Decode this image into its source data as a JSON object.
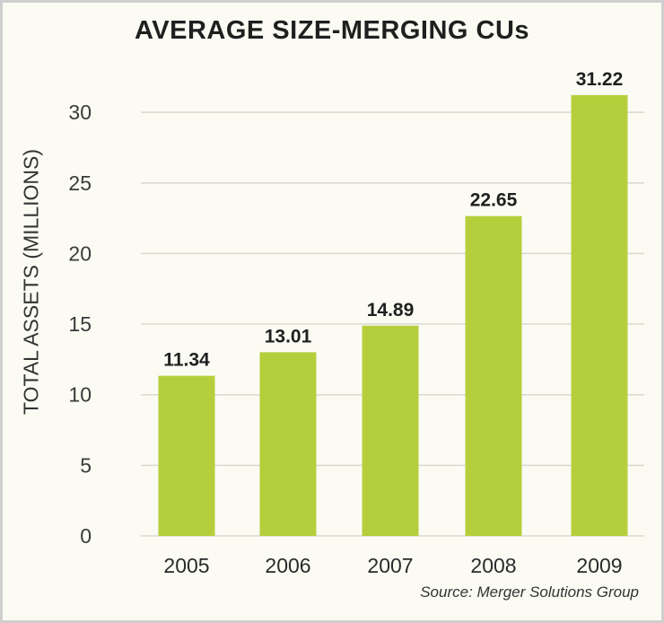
{
  "chart_data": {
    "type": "bar",
    "title": "AVERAGE SIZE-MERGING CUs",
    "ylabel": "TOTAL ASSETS (MILLIONS)",
    "xlabel": "",
    "categories": [
      "2005",
      "2006",
      "2007",
      "2008",
      "2009"
    ],
    "values": [
      11.34,
      13.01,
      14.89,
      22.65,
      31.22
    ],
    "data_labels": [
      "11.34",
      "13.01",
      "14.89",
      "22.65",
      "31.22"
    ],
    "ylim": [
      0,
      32
    ],
    "yticks": [
      0,
      5,
      10,
      15,
      20,
      25,
      30
    ],
    "grid": true,
    "legend": "none",
    "bar_color": "#b5cf3c",
    "source": "Source: Merger Solutions Group"
  }
}
